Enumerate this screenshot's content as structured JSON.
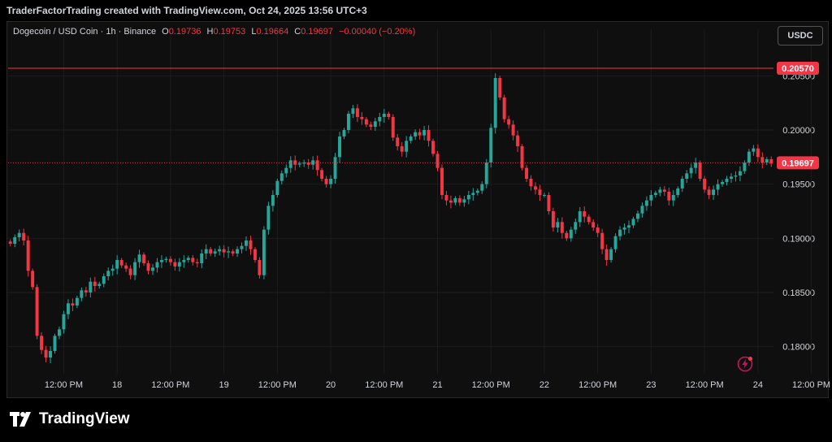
{
  "caption": "TraderFactorTrading created with TradingView.com, Oct 24, 2025 13:56 UTC+3",
  "legend": {
    "symbol": "Dogecoin / USD Coin · 1h · Binance",
    "o_label": "O",
    "o_value": "0.19736",
    "h_label": "H",
    "h_value": "0.19753",
    "l_label": "L",
    "l_value": "0.19664",
    "c_label": "C",
    "c_value": "0.19697",
    "change": "−0.00040 (−0.20%)"
  },
  "currency_button": "USDC",
  "brand": "TradingView",
  "colors": {
    "up": "#26a69a",
    "down": "#f23645",
    "grid": "#1c1c1c",
    "text": "#d1d4dc",
    "marker": "#f23645"
  },
  "chart_data": {
    "type": "candlestick",
    "y_ticks": [
      "0.20500",
      "0.20000",
      "0.19500",
      "0.19000",
      "0.18500",
      "0.18000"
    ],
    "ylim": [
      0.1775,
      0.2078
    ],
    "x_ticks": [
      {
        "label": "12:00 PM",
        "t": 12
      },
      {
        "label": "18",
        "t": 24
      },
      {
        "label": "12:00 PM",
        "t": 36
      },
      {
        "label": "19",
        "t": 48
      },
      {
        "label": "12:00 PM",
        "t": 60
      },
      {
        "label": "20",
        "t": 72
      },
      {
        "label": "12:00 PM",
        "t": 84
      },
      {
        "label": "21",
        "t": 96
      },
      {
        "label": "12:00 PM",
        "t": 108
      },
      {
        "label": "22",
        "t": 120
      },
      {
        "label": "12:00 PM",
        "t": 132
      },
      {
        "label": "23",
        "t": 144
      },
      {
        "label": "12:00 PM",
        "t": 156
      },
      {
        "label": "24",
        "t": 168
      },
      {
        "label": "12:00 PM",
        "t": 180
      }
    ],
    "price_levels": [
      {
        "label": "0.20570",
        "value": 0.2057,
        "style": "solid"
      },
      {
        "label": "0.19697",
        "value": 0.19697,
        "style": "dotted"
      }
    ],
    "closes": [
      0.1895,
      0.1901,
      0.1905,
      0.1898,
      0.187,
      0.1855,
      0.181,
      0.1797,
      0.179,
      0.1796,
      0.181,
      0.1816,
      0.183,
      0.184,
      0.1838,
      0.1845,
      0.1852,
      0.185,
      0.186,
      0.1856,
      0.1858,
      0.1865,
      0.187,
      0.1872,
      0.188,
      0.1875,
      0.1872,
      0.1866,
      0.1878,
      0.1885,
      0.1877,
      0.187,
      0.1873,
      0.1878,
      0.188,
      0.1881,
      0.1878,
      0.1874,
      0.1878,
      0.188,
      0.1882,
      0.1878,
      0.1877,
      0.1886,
      0.189,
      0.1886,
      0.1888,
      0.189,
      0.1887,
      0.1888,
      0.1886,
      0.189,
      0.1893,
      0.1898,
      0.189,
      0.188,
      0.1866,
      0.1908,
      0.193,
      0.194,
      0.1953,
      0.196,
      0.1965,
      0.1972,
      0.1968,
      0.1969,
      0.197,
      0.1968,
      0.1972,
      0.1963,
      0.1955,
      0.195,
      0.1955,
      0.1975,
      0.1994,
      0.2,
      0.2015,
      0.202,
      0.2012,
      0.201,
      0.2005,
      0.2003,
      0.2008,
      0.2012,
      0.2015,
      0.2012,
      0.1993,
      0.1985,
      0.198,
      0.199,
      0.1994,
      0.1998,
      0.1995,
      0.2,
      0.199,
      0.1978,
      0.1965,
      0.194,
      0.1935,
      0.1933,
      0.1937,
      0.1933,
      0.1936,
      0.194,
      0.1942,
      0.1944,
      0.195,
      0.197,
      0.2002,
      0.2048,
      0.203,
      0.201,
      0.2005,
      0.1995,
      0.1985,
      0.1965,
      0.1955,
      0.1948,
      0.1945,
      0.194,
      0.194,
      0.1925,
      0.191,
      0.1915,
      0.1905,
      0.19,
      0.1908,
      0.1915,
      0.1925,
      0.192,
      0.1915,
      0.191,
      0.1905,
      0.189,
      0.188,
      0.189,
      0.1902,
      0.1908,
      0.191,
      0.1912,
      0.1918,
      0.1923,
      0.193,
      0.1935,
      0.194,
      0.1942,
      0.1945,
      0.1943,
      0.1935,
      0.194,
      0.1946,
      0.1955,
      0.196,
      0.1965,
      0.197,
      0.1955,
      0.1945,
      0.194,
      0.1945,
      0.195,
      0.1952,
      0.1955,
      0.1957,
      0.1958,
      0.1962,
      0.197,
      0.198,
      0.1983,
      0.1975,
      0.197,
      0.1973,
      0.1969
    ]
  }
}
